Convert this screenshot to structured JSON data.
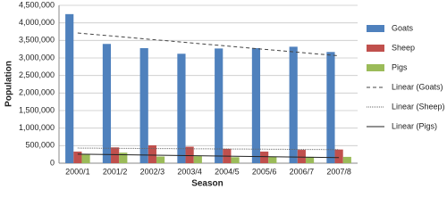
{
  "chart_data": {
    "type": "bar",
    "y_label": "Population",
    "x_label": "Season",
    "categories": [
      "2000/1",
      "2001/2",
      "2002/3",
      "2003/4",
      "2004/5",
      "2005/6",
      "2006/7",
      "2007/8"
    ],
    "series": [
      {
        "name": "Goats",
        "color": "#4f81bd",
        "values": [
          4250000,
          3400000,
          3280000,
          3120000,
          3270000,
          3280000,
          3320000,
          3170000
        ]
      },
      {
        "name": "Sheep",
        "color": "#c0504d",
        "values": [
          330000,
          450000,
          510000,
          470000,
          410000,
          330000,
          380000,
          390000
        ]
      },
      {
        "name": "Pigs",
        "color": "#9bbb59",
        "values": [
          260000,
          300000,
          190000,
          200000,
          170000,
          190000,
          180000,
          180000
        ]
      }
    ],
    "trendlines": [
      {
        "name": "Linear (Goats)",
        "series": 0,
        "dash": "4 3",
        "color": "#444444"
      },
      {
        "name": "Linear (Sheep)",
        "series": 1,
        "dash": "1 1",
        "color": "#666666"
      },
      {
        "name": "Linear (Pigs)",
        "series": 2,
        "dash": "none",
        "color": "#222222"
      }
    ],
    "ylim": [
      0,
      4500000
    ],
    "yticks": [
      {
        "value": 0,
        "label": "0"
      },
      {
        "value": 500000,
        "label": "500,000"
      },
      {
        "value": 1000000,
        "label": "1,000,000"
      },
      {
        "value": 1500000,
        "label": "1,500,000"
      },
      {
        "value": 2000000,
        "label": "2,000,000"
      },
      {
        "value": 2500000,
        "label": "2,500,000"
      },
      {
        "value": 3000000,
        "label": "3,000,000"
      },
      {
        "value": 3500000,
        "label": "3,500,000"
      },
      {
        "value": 4000000,
        "label": "4,000,000"
      },
      {
        "value": 4500000,
        "label": "4,500,000"
      }
    ],
    "grid": true,
    "legend": "right"
  }
}
